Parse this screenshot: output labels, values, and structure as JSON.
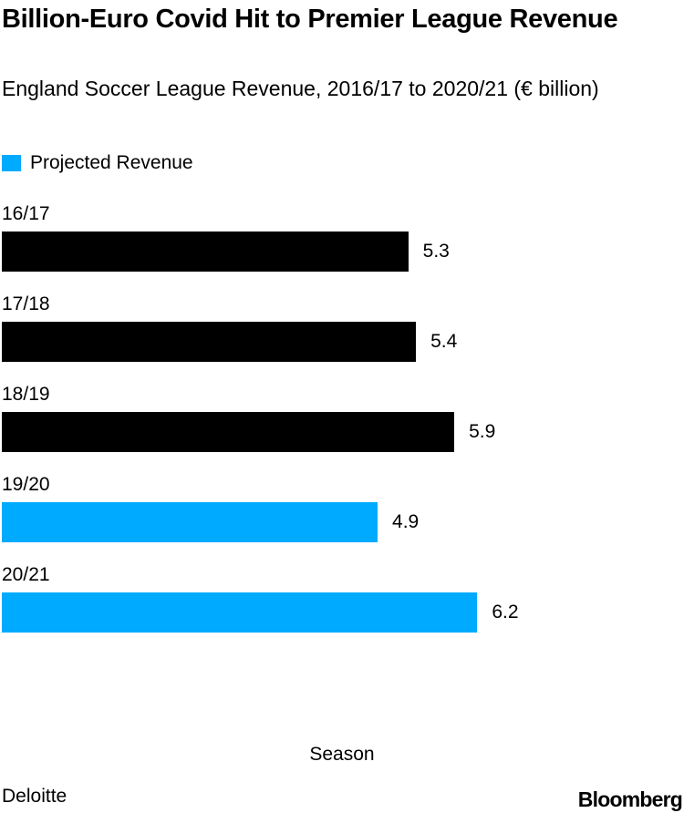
{
  "chart_data": {
    "type": "bar",
    "orientation": "horizontal",
    "title": "Billion-Euro Covid Hit to Premier League Revenue",
    "subtitle": "England Soccer League Revenue, 2016/17 to 2020/21 (€ billion)",
    "xlabel": "Season",
    "ylabel": "",
    "legend": [
      {
        "label": "Projected Revenue",
        "color": "#00aaff"
      }
    ],
    "legend_position": "top-left",
    "categories": [
      "16/17",
      "17/18",
      "18/19",
      "19/20",
      "20/21"
    ],
    "values": [
      5.3,
      5.4,
      5.9,
      4.9,
      6.2
    ],
    "value_labels": [
      "5.3",
      "5.4",
      "5.9",
      "4.9",
      "6.2"
    ],
    "projected": [
      false,
      false,
      false,
      true,
      true
    ],
    "colors": {
      "actual": "#000000",
      "projected": "#00aaff"
    },
    "xlim": [
      0,
      8.8
    ],
    "grid": false
  },
  "footer": {
    "source": "Deloitte",
    "brand": "Bloomberg"
  }
}
